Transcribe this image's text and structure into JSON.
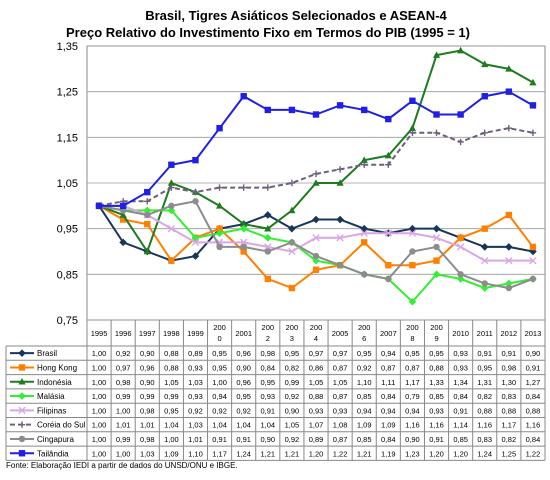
{
  "chart_data": {
    "type": "line",
    "title": "Brasil, Tigres Asiáticos Selecionados e ASEAN-4",
    "subtitle": "Preço Relativo do Investimento Fixo em Termos do PIB (1995 = 1)",
    "ylim": [
      0.75,
      1.35
    ],
    "yticks": [
      "0,75",
      "0,85",
      "0,95",
      "1,05",
      "1,15",
      "1,25",
      "1,35"
    ],
    "grid": true,
    "legend": "data-table-below",
    "categories": [
      "1995",
      "1996",
      "1997",
      "1998",
      "1999",
      "2000",
      "2001",
      "2002",
      "2003",
      "2004",
      "2005",
      "2006",
      "2007",
      "2008",
      "2009",
      "2010",
      "2011",
      "2012",
      "2013"
    ],
    "category_labels": [
      [
        "1995"
      ],
      [
        "1996"
      ],
      [
        "1997"
      ],
      [
        "1998"
      ],
      [
        "1999"
      ],
      [
        "200",
        "0"
      ],
      [
        "2001"
      ],
      [
        "200",
        "2"
      ],
      [
        "200",
        "3"
      ],
      [
        "200",
        "4"
      ],
      [
        "2005"
      ],
      [
        "200",
        "6"
      ],
      [
        "2007"
      ],
      [
        "200",
        "8"
      ],
      [
        "200",
        "9"
      ],
      [
        "2010"
      ],
      [
        "2011"
      ],
      [
        "2012"
      ],
      [
        "2013"
      ]
    ],
    "series": [
      {
        "name": "Brasil",
        "color": "#17365d",
        "marker": "diamond",
        "dash": "",
        "values": [
          1.0,
          0.92,
          0.9,
          0.88,
          0.89,
          0.95,
          0.96,
          0.98,
          0.95,
          0.97,
          0.97,
          0.95,
          0.94,
          0.95,
          0.95,
          0.93,
          0.91,
          0.91,
          0.9
        ],
        "labels": [
          "1,00",
          "0,92",
          "0,90",
          "0,88",
          "0,89",
          "0,95",
          "0,96",
          "0,98",
          "0,95",
          "0,97",
          "0,97",
          "0,95",
          "0,94",
          "0,95",
          "0,95",
          "0,93",
          "0,91",
          "0,91",
          "0,90"
        ]
      },
      {
        "name": "Hong Kong",
        "color": "#ff7f00",
        "marker": "square",
        "dash": "",
        "values": [
          1.0,
          0.97,
          0.96,
          0.88,
          0.93,
          0.95,
          0.9,
          0.84,
          0.82,
          0.86,
          0.87,
          0.92,
          0.87,
          0.87,
          0.88,
          0.93,
          0.95,
          0.98,
          0.91
        ],
        "labels": [
          "1,00",
          "0,97",
          "0,96",
          "0,88",
          "0,93",
          "0,95",
          "0,90",
          "0,84",
          "0,82",
          "0,86",
          "0,87",
          "0,92",
          "0,87",
          "0,87",
          "0,88",
          "0,93",
          "0,95",
          "0,98",
          "0,91"
        ]
      },
      {
        "name": "Indonésia",
        "color": "#1e7b1e",
        "marker": "triangle",
        "dash": "",
        "values": [
          1.0,
          0.98,
          0.9,
          1.05,
          1.03,
          1.0,
          0.96,
          0.95,
          0.99,
          1.05,
          1.05,
          1.1,
          1.11,
          1.17,
          1.33,
          1.34,
          1.31,
          1.3,
          1.27
        ],
        "labels": [
          "1,00",
          "0,98",
          "0,90",
          "1,05",
          "1,03",
          "1,00",
          "0,96",
          "0,95",
          "0,99",
          "1,05",
          "1,05",
          "1,10",
          "1,11",
          "1,17",
          "1,33",
          "1,34",
          "1,31",
          "1,30",
          "1,27"
        ]
      },
      {
        "name": "Malásia",
        "color": "#33ee33",
        "marker": "diamond",
        "dash": "",
        "values": [
          1.0,
          0.99,
          0.99,
          0.99,
          0.93,
          0.94,
          0.95,
          0.93,
          0.92,
          0.88,
          0.87,
          0.85,
          0.84,
          0.79,
          0.85,
          0.84,
          0.82,
          0.83,
          0.84
        ],
        "labels": [
          "1,00",
          "0,99",
          "0,99",
          "0,99",
          "0,93",
          "0,94",
          "0,95",
          "0,93",
          "0,92",
          "0,88",
          "0,87",
          "0,85",
          "0,84",
          "0,79",
          "0,85",
          "0,84",
          "0,82",
          "0,83",
          "0,84"
        ]
      },
      {
        "name": "Filipinas",
        "color": "#d9a6e6",
        "marker": "x",
        "dash": "",
        "values": [
          1.0,
          1.0,
          0.98,
          0.95,
          0.92,
          0.92,
          0.92,
          0.91,
          0.9,
          0.93,
          0.93,
          0.94,
          0.94,
          0.94,
          0.93,
          0.91,
          0.88,
          0.88,
          0.88
        ],
        "labels": [
          "1,00",
          "1,00",
          "0,98",
          "0,95",
          "0,92",
          "0,92",
          "0,92",
          "0,91",
          "0,90",
          "0,93",
          "0,93",
          "0,94",
          "0,94",
          "0,94",
          "0,93",
          "0,91",
          "0,88",
          "0,88",
          "0,88"
        ]
      },
      {
        "name": "Coréia do Sul",
        "color": "#6e5f7e",
        "marker": "plus",
        "dash": "5,3",
        "values": [
          1.0,
          1.01,
          1.01,
          1.04,
          1.03,
          1.04,
          1.04,
          1.04,
          1.05,
          1.07,
          1.08,
          1.09,
          1.09,
          1.16,
          1.16,
          1.14,
          1.16,
          1.17,
          1.16
        ],
        "labels": [
          "1,00",
          "1,01",
          "1,01",
          "1,04",
          "1,03",
          "1,04",
          "1,04",
          "1,04",
          "1,05",
          "1,07",
          "1,08",
          "1,09",
          "1,09",
          "1,16",
          "1,16",
          "1,14",
          "1,16",
          "1,17",
          "1,16"
        ]
      },
      {
        "name": "Cingapura",
        "color": "#8c8c8c",
        "marker": "circle",
        "dash": "",
        "values": [
          1.0,
          0.99,
          0.98,
          1.0,
          1.01,
          0.91,
          0.91,
          0.9,
          0.92,
          0.89,
          0.87,
          0.85,
          0.84,
          0.9,
          0.91,
          0.85,
          0.83,
          0.82,
          0.84
        ],
        "labels": [
          "1,00",
          "0,99",
          "0,98",
          "1,00",
          "1,01",
          "0,91",
          "0,91",
          "0,90",
          "0,92",
          "0,89",
          "0,87",
          "0,85",
          "0,84",
          "0,90",
          "0,91",
          "0,85",
          "0,83",
          "0,82",
          "0,84"
        ]
      },
      {
        "name": "Tailândia",
        "color": "#1f1fe6",
        "marker": "square",
        "dash": "",
        "values": [
          1.0,
          1.0,
          1.03,
          1.09,
          1.1,
          1.17,
          1.24,
          1.21,
          1.21,
          1.2,
          1.22,
          1.21,
          1.19,
          1.23,
          1.2,
          1.2,
          1.24,
          1.25,
          1.22
        ],
        "labels": [
          "1,00",
          "1,00",
          "1,03",
          "1,09",
          "1,10",
          "1,17",
          "1,24",
          "1,21",
          "1,21",
          "1,20",
          "1,22",
          "1,21",
          "1,19",
          "1,23",
          "1,20",
          "1,20",
          "1,24",
          "1,25",
          "1,22"
        ]
      }
    ]
  },
  "source": "Fonte: Elaboração IEDI a partir de dados do UNSD/ONU e IBGE."
}
